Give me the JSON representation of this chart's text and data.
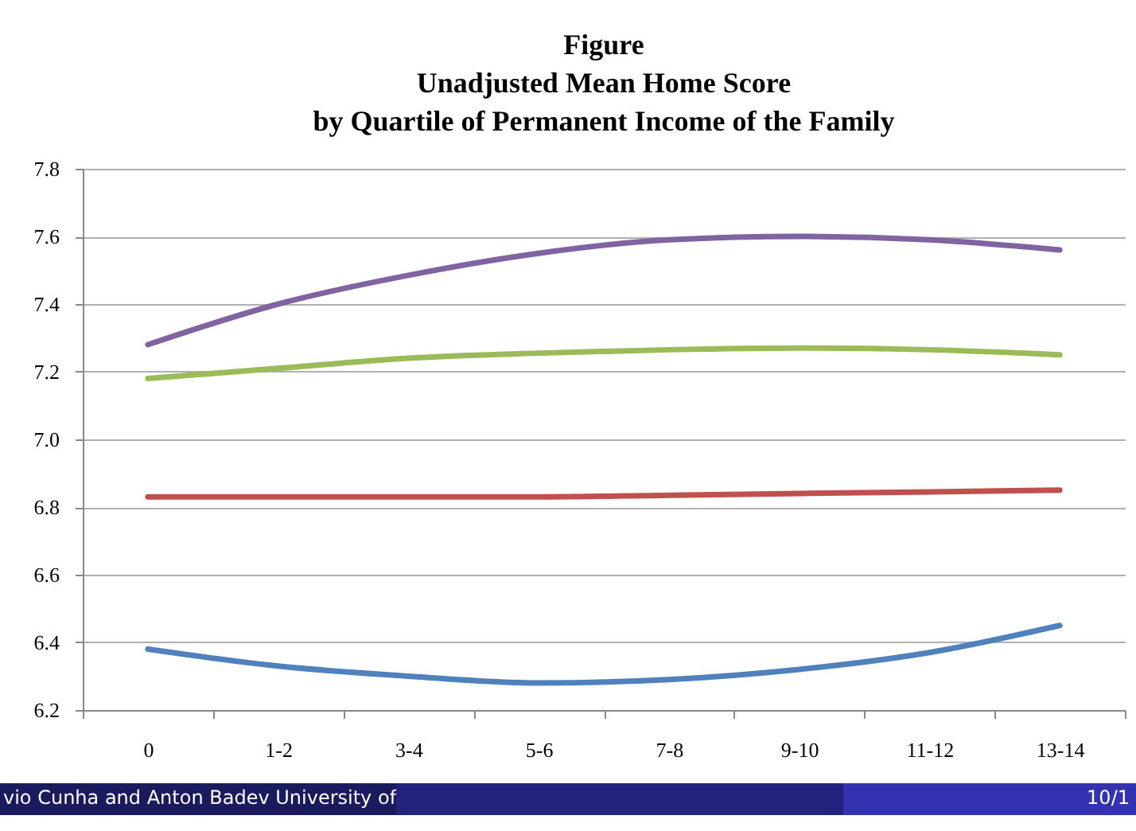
{
  "chart_data": {
    "type": "line",
    "title": "Figure\nUnadjusted Mean Home Score\nby Quartile of Permanent Income of the Family",
    "categories": [
      "0",
      "1-2",
      "3-4",
      "5-6",
      "7-8",
      "9-10",
      "11-12",
      "13-14"
    ],
    "series": [
      {
        "color": "#8064a2",
        "values": [
          7.28,
          7.4,
          7.485,
          7.55,
          7.59,
          7.6,
          7.59,
          7.56
        ]
      },
      {
        "color": "#9bbb59",
        "values": [
          7.18,
          7.21,
          7.24,
          7.255,
          7.265,
          7.27,
          7.265,
          7.25
        ]
      },
      {
        "color": "#c0504d",
        "values": [
          6.83,
          6.83,
          6.83,
          6.83,
          6.835,
          6.84,
          6.845,
          6.85
        ]
      },
      {
        "color": "#4f81bd",
        "values": [
          6.38,
          6.33,
          6.3,
          6.28,
          6.29,
          6.32,
          6.37,
          6.45
        ]
      }
    ],
    "ylim": [
      6.2,
      7.8
    ],
    "yticks": [
      {
        "value": 6.2,
        "label": "6.2"
      },
      {
        "value": 6.4,
        "label": "6.4"
      },
      {
        "value": 6.6,
        "label": "6.6"
      },
      {
        "value": 6.8,
        "label": "6.8"
      },
      {
        "value": 7.0,
        "label": "7.0"
      },
      {
        "value": 7.2,
        "label": "7.2"
      },
      {
        "value": 7.4,
        "label": "7.4"
      },
      {
        "value": 7.6,
        "label": "7.6"
      },
      {
        "value": 7.8,
        "label": "7.8"
      }
    ],
    "grid": "y",
    "legend": false,
    "marker": "none",
    "line_style": "solid",
    "annotations": [
      "vio Cunha and Anton Badev  University of",
      "10/1"
    ]
  }
}
